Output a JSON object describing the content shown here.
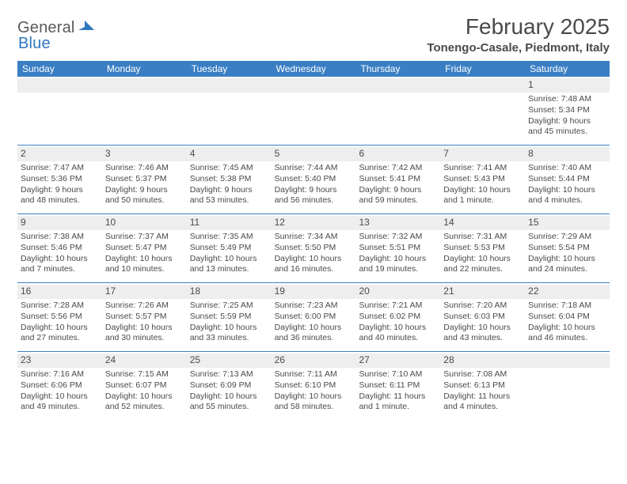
{
  "logo": {
    "text1": "General",
    "text2": "Blue"
  },
  "title": "February 2025",
  "location": "Tonengo-Casale, Piedmont, Italy",
  "day_headers": [
    "Sunday",
    "Monday",
    "Tuesday",
    "Wednesday",
    "Thursday",
    "Friday",
    "Saturday"
  ],
  "colors": {
    "header_bg": "#3a7fc4",
    "header_text": "#ffffff",
    "rule": "#3a7fc4",
    "stripe": "#eeeeee",
    "body_text": "#4a4a4a",
    "logo_blue": "#2f78bf"
  },
  "weeks": [
    [
      {
        "day": "",
        "sunrise": "",
        "sunset": "",
        "daylight": ""
      },
      {
        "day": "",
        "sunrise": "",
        "sunset": "",
        "daylight": ""
      },
      {
        "day": "",
        "sunrise": "",
        "sunset": "",
        "daylight": ""
      },
      {
        "day": "",
        "sunrise": "",
        "sunset": "",
        "daylight": ""
      },
      {
        "day": "",
        "sunrise": "",
        "sunset": "",
        "daylight": ""
      },
      {
        "day": "",
        "sunrise": "",
        "sunset": "",
        "daylight": ""
      },
      {
        "day": "1",
        "sunrise": "Sunrise: 7:48 AM",
        "sunset": "Sunset: 5:34 PM",
        "daylight": "Daylight: 9 hours and 45 minutes."
      }
    ],
    [
      {
        "day": "2",
        "sunrise": "Sunrise: 7:47 AM",
        "sunset": "Sunset: 5:36 PM",
        "daylight": "Daylight: 9 hours and 48 minutes."
      },
      {
        "day": "3",
        "sunrise": "Sunrise: 7:46 AM",
        "sunset": "Sunset: 5:37 PM",
        "daylight": "Daylight: 9 hours and 50 minutes."
      },
      {
        "day": "4",
        "sunrise": "Sunrise: 7:45 AM",
        "sunset": "Sunset: 5:38 PM",
        "daylight": "Daylight: 9 hours and 53 minutes."
      },
      {
        "day": "5",
        "sunrise": "Sunrise: 7:44 AM",
        "sunset": "Sunset: 5:40 PM",
        "daylight": "Daylight: 9 hours and 56 minutes."
      },
      {
        "day": "6",
        "sunrise": "Sunrise: 7:42 AM",
        "sunset": "Sunset: 5:41 PM",
        "daylight": "Daylight: 9 hours and 59 minutes."
      },
      {
        "day": "7",
        "sunrise": "Sunrise: 7:41 AM",
        "sunset": "Sunset: 5:43 PM",
        "daylight": "Daylight: 10 hours and 1 minute."
      },
      {
        "day": "8",
        "sunrise": "Sunrise: 7:40 AM",
        "sunset": "Sunset: 5:44 PM",
        "daylight": "Daylight: 10 hours and 4 minutes."
      }
    ],
    [
      {
        "day": "9",
        "sunrise": "Sunrise: 7:38 AM",
        "sunset": "Sunset: 5:46 PM",
        "daylight": "Daylight: 10 hours and 7 minutes."
      },
      {
        "day": "10",
        "sunrise": "Sunrise: 7:37 AM",
        "sunset": "Sunset: 5:47 PM",
        "daylight": "Daylight: 10 hours and 10 minutes."
      },
      {
        "day": "11",
        "sunrise": "Sunrise: 7:35 AM",
        "sunset": "Sunset: 5:49 PM",
        "daylight": "Daylight: 10 hours and 13 minutes."
      },
      {
        "day": "12",
        "sunrise": "Sunrise: 7:34 AM",
        "sunset": "Sunset: 5:50 PM",
        "daylight": "Daylight: 10 hours and 16 minutes."
      },
      {
        "day": "13",
        "sunrise": "Sunrise: 7:32 AM",
        "sunset": "Sunset: 5:51 PM",
        "daylight": "Daylight: 10 hours and 19 minutes."
      },
      {
        "day": "14",
        "sunrise": "Sunrise: 7:31 AM",
        "sunset": "Sunset: 5:53 PM",
        "daylight": "Daylight: 10 hours and 22 minutes."
      },
      {
        "day": "15",
        "sunrise": "Sunrise: 7:29 AM",
        "sunset": "Sunset: 5:54 PM",
        "daylight": "Daylight: 10 hours and 24 minutes."
      }
    ],
    [
      {
        "day": "16",
        "sunrise": "Sunrise: 7:28 AM",
        "sunset": "Sunset: 5:56 PM",
        "daylight": "Daylight: 10 hours and 27 minutes."
      },
      {
        "day": "17",
        "sunrise": "Sunrise: 7:26 AM",
        "sunset": "Sunset: 5:57 PM",
        "daylight": "Daylight: 10 hours and 30 minutes."
      },
      {
        "day": "18",
        "sunrise": "Sunrise: 7:25 AM",
        "sunset": "Sunset: 5:59 PM",
        "daylight": "Daylight: 10 hours and 33 minutes."
      },
      {
        "day": "19",
        "sunrise": "Sunrise: 7:23 AM",
        "sunset": "Sunset: 6:00 PM",
        "daylight": "Daylight: 10 hours and 36 minutes."
      },
      {
        "day": "20",
        "sunrise": "Sunrise: 7:21 AM",
        "sunset": "Sunset: 6:02 PM",
        "daylight": "Daylight: 10 hours and 40 minutes."
      },
      {
        "day": "21",
        "sunrise": "Sunrise: 7:20 AM",
        "sunset": "Sunset: 6:03 PM",
        "daylight": "Daylight: 10 hours and 43 minutes."
      },
      {
        "day": "22",
        "sunrise": "Sunrise: 7:18 AM",
        "sunset": "Sunset: 6:04 PM",
        "daylight": "Daylight: 10 hours and 46 minutes."
      }
    ],
    [
      {
        "day": "23",
        "sunrise": "Sunrise: 7:16 AM",
        "sunset": "Sunset: 6:06 PM",
        "daylight": "Daylight: 10 hours and 49 minutes."
      },
      {
        "day": "24",
        "sunrise": "Sunrise: 7:15 AM",
        "sunset": "Sunset: 6:07 PM",
        "daylight": "Daylight: 10 hours and 52 minutes."
      },
      {
        "day": "25",
        "sunrise": "Sunrise: 7:13 AM",
        "sunset": "Sunset: 6:09 PM",
        "daylight": "Daylight: 10 hours and 55 minutes."
      },
      {
        "day": "26",
        "sunrise": "Sunrise: 7:11 AM",
        "sunset": "Sunset: 6:10 PM",
        "daylight": "Daylight: 10 hours and 58 minutes."
      },
      {
        "day": "27",
        "sunrise": "Sunrise: 7:10 AM",
        "sunset": "Sunset: 6:11 PM",
        "daylight": "Daylight: 11 hours and 1 minute."
      },
      {
        "day": "28",
        "sunrise": "Sunrise: 7:08 AM",
        "sunset": "Sunset: 6:13 PM",
        "daylight": "Daylight: 11 hours and 4 minutes."
      },
      {
        "day": "",
        "sunrise": "",
        "sunset": "",
        "daylight": ""
      }
    ]
  ]
}
